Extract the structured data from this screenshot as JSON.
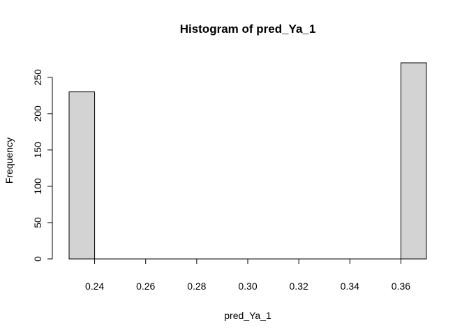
{
  "chart_data": {
    "type": "bar",
    "title": "Histogram of pred_Ya_1",
    "xlabel": "pred_Ya_1",
    "ylabel": "Frequency",
    "x_ticks": [
      "0.24",
      "0.26",
      "0.28",
      "0.30",
      "0.32",
      "0.34",
      "0.36"
    ],
    "y_ticks": [
      "0",
      "50",
      "100",
      "150",
      "200",
      "250"
    ],
    "xlim": [
      0.23,
      0.37
    ],
    "ylim": [
      0,
      270
    ],
    "bins": [
      {
        "start": 0.23,
        "end": 0.24,
        "count": 230
      },
      {
        "start": 0.24,
        "end": 0.25,
        "count": 0
      },
      {
        "start": 0.25,
        "end": 0.26,
        "count": 0
      },
      {
        "start": 0.26,
        "end": 0.27,
        "count": 0
      },
      {
        "start": 0.27,
        "end": 0.28,
        "count": 0
      },
      {
        "start": 0.28,
        "end": 0.29,
        "count": 0
      },
      {
        "start": 0.29,
        "end": 0.3,
        "count": 0
      },
      {
        "start": 0.3,
        "end": 0.31,
        "count": 0
      },
      {
        "start": 0.31,
        "end": 0.32,
        "count": 0
      },
      {
        "start": 0.32,
        "end": 0.33,
        "count": 0
      },
      {
        "start": 0.33,
        "end": 0.34,
        "count": 0
      },
      {
        "start": 0.34,
        "end": 0.35,
        "count": 0
      },
      {
        "start": 0.35,
        "end": 0.36,
        "count": 0
      },
      {
        "start": 0.36,
        "end": 0.37,
        "count": 270
      }
    ],
    "bar_fill": "#d3d3d3",
    "bar_stroke": "#000000",
    "grid": false,
    "legend": "none"
  }
}
